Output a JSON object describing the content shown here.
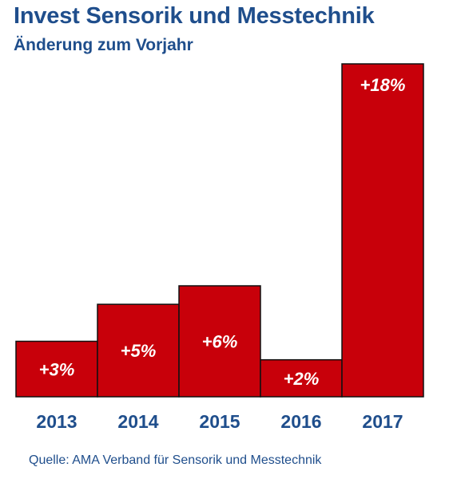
{
  "chart_data": {
    "type": "bar",
    "title": "Invest Sensorik und Messtechnik",
    "subtitle": "Änderung zum Vorjahr",
    "categories": [
      "2013",
      "2014",
      "2015",
      "2016",
      "2017"
    ],
    "values": [
      3,
      5,
      6,
      2,
      18
    ],
    "value_labels": [
      "+3%",
      "+5%",
      "+6%",
      "+2%",
      "+18%"
    ],
    "unit": "%",
    "xlabel": "",
    "ylabel": "",
    "ylim": [
      0,
      18
    ],
    "grid": false,
    "legend": "none",
    "bar_color": "#c8000a",
    "text_color": "#1f4e8c",
    "source": "Quelle: AMA Verband für Sensorik und Messtechnik"
  }
}
